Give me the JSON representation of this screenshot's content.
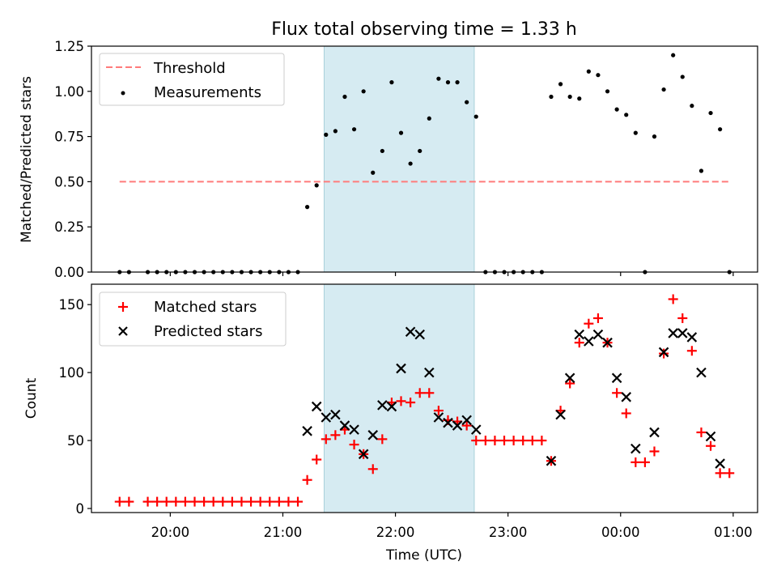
{
  "chart_data": [
    {
      "type": "scatter",
      "title": "Flux total observing time = 1.33 h",
      "ylabel": "Matched/Predicted stars",
      "xlabel": "",
      "xlim": [
        "19:18",
        "01:13"
      ],
      "ylim": [
        0,
        1.25
      ],
      "x_ticks": [
        "20:00",
        "21:00",
        "22:00",
        "23:00",
        "00:00",
        "01:00"
      ],
      "y_ticks": [
        "0.00",
        "0.25",
        "0.50",
        "0.75",
        "1.00",
        "1.25"
      ],
      "legend_position": "upper-left",
      "shaded_interval": {
        "start": "21:22",
        "end": "22:42",
        "color": "#add8e6"
      },
      "series": [
        {
          "name": "Threshold",
          "kind": "dashed-line",
          "color": "#ff7b7b",
          "x": [
            "19:33",
            "00:58"
          ],
          "y": [
            0.5,
            0.5
          ]
        },
        {
          "name": "Measurements",
          "kind": "points",
          "color": "#000000",
          "x": [
            "19:33",
            "19:38",
            "19:48",
            "19:53",
            "19:58",
            "20:03",
            "20:08",
            "20:13",
            "20:18",
            "20:23",
            "20:28",
            "20:33",
            "20:38",
            "20:43",
            "20:48",
            "20:53",
            "20:58",
            "21:03",
            "21:08",
            "21:13",
            "21:18",
            "21:23",
            "21:28",
            "21:33",
            "21:38",
            "21:43",
            "21:48",
            "21:53",
            "21:58",
            "22:03",
            "22:08",
            "22:13",
            "22:18",
            "22:23",
            "22:28",
            "22:33",
            "22:38",
            "22:43",
            "22:48",
            "22:53",
            "22:58",
            "23:03",
            "23:08",
            "23:13",
            "23:18",
            "23:23",
            "23:28",
            "23:33",
            "23:38",
            "23:43",
            "23:48",
            "23:53",
            "23:58",
            "00:03",
            "00:08",
            "00:13",
            "00:18",
            "00:23",
            "00:28",
            "00:33",
            "00:38",
            "00:43",
            "00:48",
            "00:53",
            "00:58"
          ],
          "y": [
            0,
            0,
            0,
            0,
            0,
            0,
            0,
            0,
            0,
            0,
            0,
            0,
            0,
            0,
            0,
            0,
            0,
            0,
            0,
            0.36,
            0.48,
            0.76,
            0.78,
            0.97,
            0.79,
            1.0,
            0.55,
            0.67,
            1.05,
            0.77,
            0.6,
            0.67,
            0.85,
            1.07,
            1.05,
            1.05,
            0.94,
            0.86,
            0,
            0,
            0,
            0,
            0,
            0,
            0,
            0.97,
            1.04,
            0.97,
            0.96,
            1.11,
            1.09,
            1.0,
            0.9,
            0.87,
            0.77,
            0,
            0.75,
            1.01,
            1.2,
            1.08,
            0.92,
            0.56,
            0.88,
            0.79,
            0
          ]
        }
      ]
    },
    {
      "type": "scatter",
      "title": "",
      "ylabel": "Count",
      "xlabel": "Time (UTC)",
      "xlim": [
        "19:18",
        "01:13"
      ],
      "ylim": [
        -3,
        165
      ],
      "x_ticks": [
        "20:00",
        "21:00",
        "22:00",
        "23:00",
        "00:00",
        "01:00"
      ],
      "y_ticks": [
        "0",
        "50",
        "100",
        "150"
      ],
      "legend_position": "upper-left",
      "shaded_interval": {
        "start": "21:22",
        "end": "22:42",
        "color": "#add8e6"
      },
      "series": [
        {
          "name": "Matched stars",
          "marker": "plus",
          "color": "#ff0000",
          "x": [
            "19:33",
            "19:38",
            "19:48",
            "19:53",
            "19:58",
            "20:03",
            "20:08",
            "20:13",
            "20:18",
            "20:23",
            "20:28",
            "20:33",
            "20:38",
            "20:43",
            "20:48",
            "20:53",
            "20:58",
            "21:03",
            "21:08",
            "21:13",
            "21:18",
            "21:23",
            "21:28",
            "21:33",
            "21:38",
            "21:43",
            "21:48",
            "21:53",
            "21:58",
            "22:03",
            "22:08",
            "22:13",
            "22:18",
            "22:23",
            "22:28",
            "22:33",
            "22:38",
            "22:43",
            "22:48",
            "22:53",
            "22:58",
            "23:03",
            "23:08",
            "23:13",
            "23:18",
            "23:23",
            "23:28",
            "23:33",
            "23:38",
            "23:43",
            "23:48",
            "23:53",
            "23:58",
            "00:03",
            "00:08",
            "00:13",
            "00:18",
            "00:23",
            "00:28",
            "00:33",
            "00:38",
            "00:43",
            "00:48",
            "00:53",
            "00:58"
          ],
          "y": [
            5,
            5,
            5,
            5,
            5,
            5,
            5,
            5,
            5,
            5,
            5,
            5,
            5,
            5,
            5,
            5,
            5,
            5,
            5,
            21,
            36,
            51,
            54,
            58,
            47,
            40,
            29,
            51,
            78,
            79,
            78,
            85,
            85,
            72,
            65,
            64,
            61,
            50,
            50,
            50,
            50,
            50,
            50,
            50,
            50,
            35,
            72,
            92,
            122,
            136,
            140,
            122,
            85,
            70,
            34,
            34,
            42,
            114,
            154,
            140,
            116,
            56,
            46,
            26,
            26
          ]
        },
        {
          "name": "Predicted stars",
          "marker": "x",
          "color": "#000000",
          "x": [
            "21:13",
            "21:18",
            "21:23",
            "21:28",
            "21:33",
            "21:38",
            "21:43",
            "21:48",
            "21:53",
            "21:58",
            "22:03",
            "22:08",
            "22:13",
            "22:18",
            "22:23",
            "22:28",
            "22:33",
            "22:38",
            "22:43",
            "23:23",
            "23:28",
            "23:33",
            "23:38",
            "23:43",
            "23:48",
            "23:53",
            "23:58",
            "00:03",
            "00:08",
            "00:18",
            "00:23",
            "00:28",
            "00:33",
            "00:38",
            "00:43",
            "00:48",
            "00:53"
          ],
          "y": [
            57,
            75,
            67,
            69,
            61,
            58,
            40,
            54,
            76,
            75,
            103,
            130,
            128,
            100,
            67,
            63,
            61,
            65,
            58,
            35,
            69,
            96,
            128,
            123,
            128,
            122,
            96,
            82,
            44,
            56,
            115,
            129,
            129,
            126,
            100,
            53,
            33
          ]
        }
      ]
    }
  ]
}
